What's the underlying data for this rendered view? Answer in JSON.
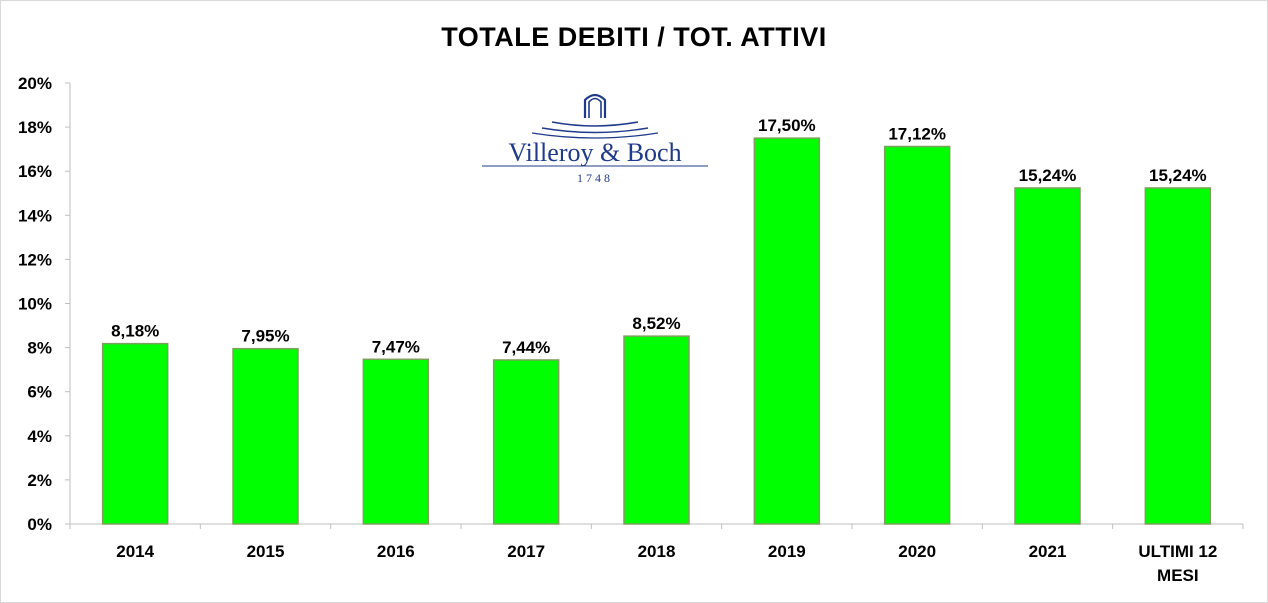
{
  "chart_data": {
    "type": "bar",
    "title": "TOTALE  DEBITI / TOT. ATTIVI",
    "categories": [
      "2014",
      "2015",
      "2016",
      "2017",
      "2018",
      "2019",
      "2020",
      "2021",
      "ULTIMI 12 MESI"
    ],
    "values": [
      8.18,
      7.95,
      7.47,
      7.44,
      8.52,
      17.5,
      17.12,
      15.24,
      15.24
    ],
    "data_labels": [
      "8,18%",
      "7,95%",
      "7,47%",
      "7,44%",
      "8,52%",
      "17,50%",
      "17,12%",
      "15,24%",
      "15,24%"
    ],
    "ylim": [
      0,
      20
    ],
    "yticks": [
      "0%",
      "2%",
      "4%",
      "6%",
      "8%",
      "10%",
      "12%",
      "14%",
      "16%",
      "18%",
      "20%"
    ],
    "grid": false,
    "bar_color": "#00ff00",
    "bar_border_color": "#7f9f5f"
  },
  "logo": {
    "brand": "Villeroy & Boch",
    "year": "1748",
    "color": "#1f3a8a"
  }
}
